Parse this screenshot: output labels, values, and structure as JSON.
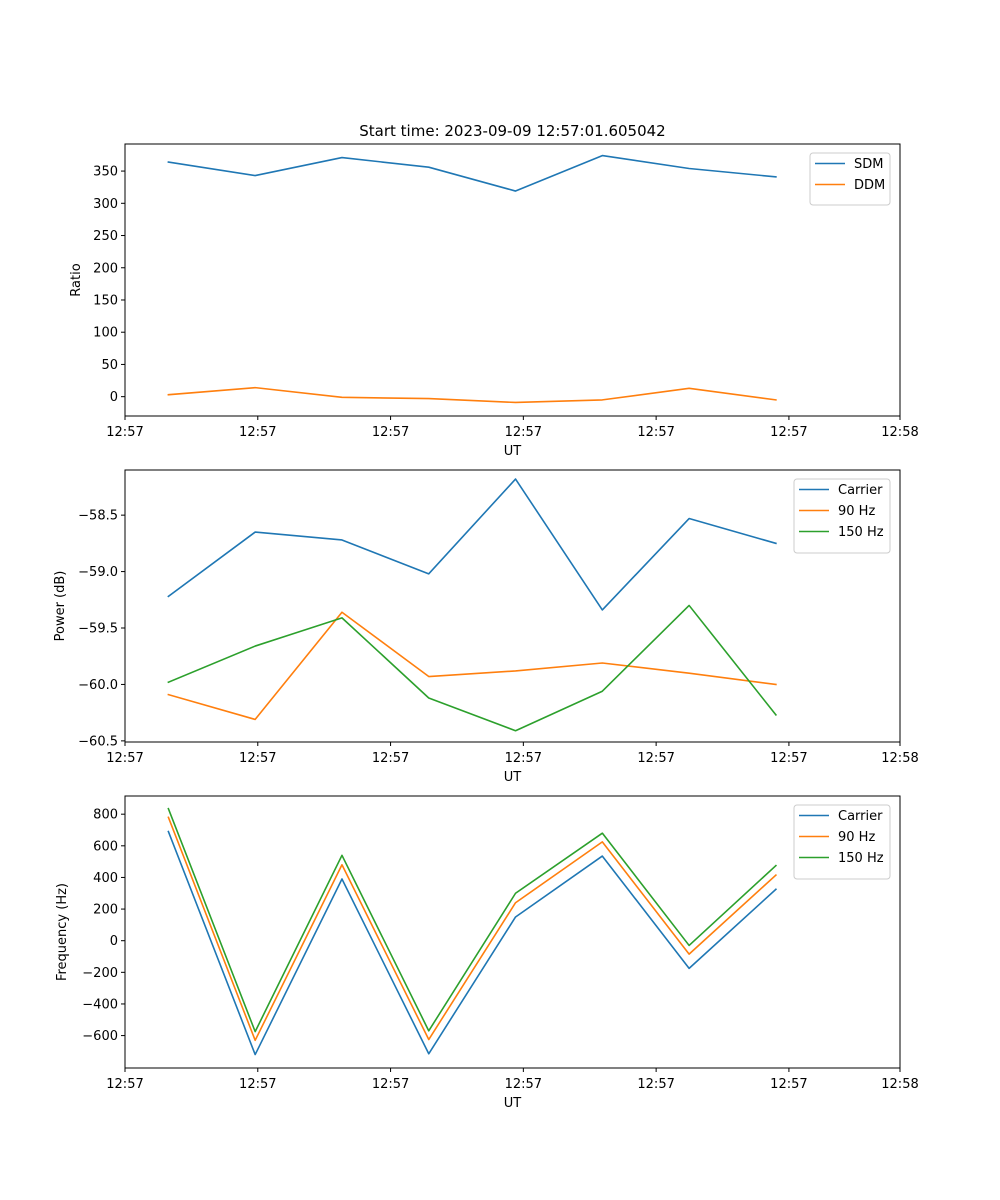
{
  "figure": {
    "title": "Start time: 2023-09-09 12:57:01.605042"
  },
  "colors": {
    "blue": "#1f77b4",
    "orange": "#ff7f0e",
    "green": "#2ca02c"
  },
  "chart_data": [
    {
      "type": "line",
      "title": "Start time: 2023-09-09 12:57:01.605042",
      "xlabel": "UT",
      "ylabel": "Ratio",
      "x": [
        1,
        2,
        3,
        4,
        5,
        6,
        7,
        8
      ],
      "xlim": [
        0.5,
        9.43
      ],
      "xticks": [
        0.5,
        2.03,
        3.56,
        5.09,
        6.62,
        8.15,
        9.43
      ],
      "xtick_labels": [
        "12:57",
        "12:57",
        "12:57",
        "12:57",
        "12:57",
        "12:57",
        "12:58"
      ],
      "ylim": [
        -30,
        392
      ],
      "yticks": [
        0,
        50,
        100,
        150,
        200,
        250,
        300,
        350
      ],
      "ytick_labels": [
        "0",
        "50",
        "100",
        "150",
        "200",
        "250",
        "300",
        "350"
      ],
      "legend_position": "upper right",
      "series": [
        {
          "name": "SDM",
          "color": "#1f77b4",
          "values": [
            364,
            343,
            371,
            356,
            319,
            374,
            354,
            341
          ]
        },
        {
          "name": "DDM",
          "color": "#ff7f0e",
          "values": [
            3,
            14,
            -1,
            -3,
            -9,
            -5,
            13,
            -5
          ]
        }
      ]
    },
    {
      "type": "line",
      "xlabel": "UT",
      "ylabel": "Power (dB)",
      "x": [
        1,
        2,
        3,
        4,
        5,
        6,
        7,
        8
      ],
      "xlim": [
        0.5,
        9.43
      ],
      "xticks": [
        0.5,
        2.03,
        3.56,
        5.09,
        6.62,
        8.15,
        9.43
      ],
      "xtick_labels": [
        "12:57",
        "12:57",
        "12:57",
        "12:57",
        "12:57",
        "12:57",
        "12:58"
      ],
      "ylim": [
        -60.51,
        -58.1
      ],
      "yticks": [
        -60.5,
        -60.0,
        -59.5,
        -59.0,
        -58.5
      ],
      "ytick_labels": [
        "−60.5",
        "−60.0",
        "−59.5",
        "−59.0",
        "−58.5"
      ],
      "legend_position": "upper right",
      "series": [
        {
          "name": "Carrier",
          "color": "#1f77b4",
          "values": [
            -59.22,
            -58.65,
            -58.72,
            -59.02,
            -58.18,
            -59.34,
            -58.53,
            -58.75
          ]
        },
        {
          "name": "90 Hz",
          "color": "#ff7f0e",
          "values": [
            -60.09,
            -60.31,
            -59.36,
            -59.93,
            -59.88,
            -59.81,
            -59.9,
            -60.0
          ]
        },
        {
          "name": "150 Hz",
          "color": "#2ca02c",
          "values": [
            -59.98,
            -59.66,
            -59.41,
            -60.12,
            -60.41,
            -60.06,
            -59.3,
            -60.27
          ]
        }
      ]
    },
    {
      "type": "line",
      "xlabel": "UT",
      "ylabel": "Frequency (Hz)",
      "x": [
        1,
        2,
        3,
        4,
        5,
        6,
        7,
        8
      ],
      "xlim": [
        0.5,
        9.43
      ],
      "xticks": [
        0.5,
        2.03,
        3.56,
        5.09,
        6.62,
        8.15,
        9.43
      ],
      "xtick_labels": [
        "12:57",
        "12:57",
        "12:57",
        "12:57",
        "12:57",
        "12:57",
        "12:58"
      ],
      "ylim": [
        -805,
        915
      ],
      "yticks": [
        -600,
        -400,
        -200,
        0,
        200,
        400,
        600,
        800
      ],
      "ytick_labels": [
        "−600",
        "−400",
        "−200",
        "0",
        "200",
        "400",
        "600",
        "800"
      ],
      "legend_position": "upper right",
      "series": [
        {
          "name": "Carrier",
          "color": "#1f77b4",
          "values": [
            690,
            -720,
            390,
            -715,
            150,
            535,
            -175,
            325
          ]
        },
        {
          "name": "90 Hz",
          "color": "#ff7f0e",
          "values": [
            780,
            -630,
            480,
            -625,
            240,
            625,
            -85,
            415
          ]
        },
        {
          "name": "150 Hz",
          "color": "#2ca02c",
          "values": [
            835,
            -575,
            540,
            -570,
            300,
            680,
            -30,
            475
          ]
        }
      ]
    }
  ]
}
